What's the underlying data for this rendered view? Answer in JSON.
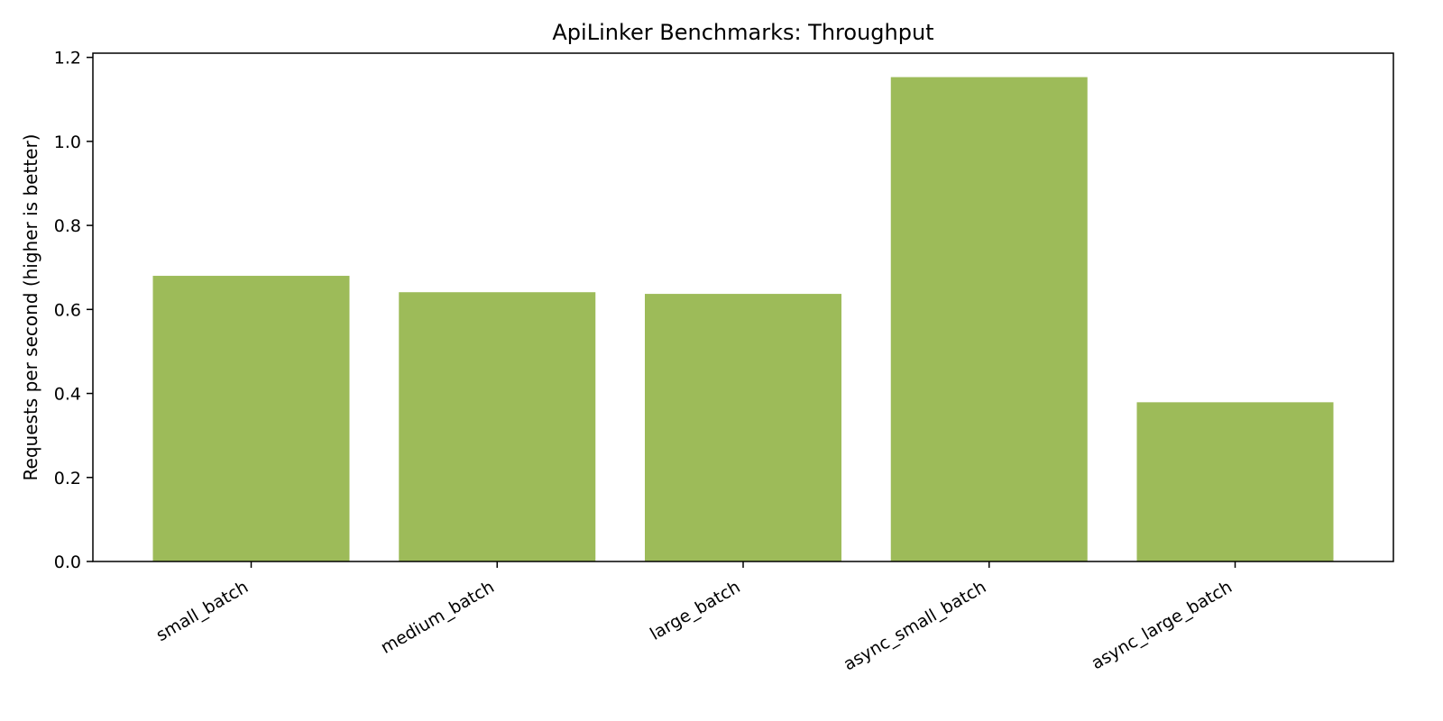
{
  "chart_data": {
    "type": "bar",
    "title": "ApiLinker Benchmarks: Throughput",
    "xlabel": "",
    "ylabel": "Requests per second (higher is better)",
    "categories": [
      "small_batch",
      "medium_batch",
      "large_batch",
      "async_small_batch",
      "async_large_batch"
    ],
    "values": [
      0.68,
      0.641,
      0.637,
      1.153,
      0.379
    ],
    "ylim": [
      0,
      1.21
    ],
    "yticks": [
      0.0,
      0.2,
      0.4,
      0.6,
      0.8,
      1.0,
      1.2
    ],
    "ytick_labels": [
      "0.0",
      "0.2",
      "0.4",
      "0.6",
      "0.8",
      "1.0",
      "1.2"
    ],
    "bar_color": "#9dbb59",
    "grid": false,
    "legend": "none"
  }
}
